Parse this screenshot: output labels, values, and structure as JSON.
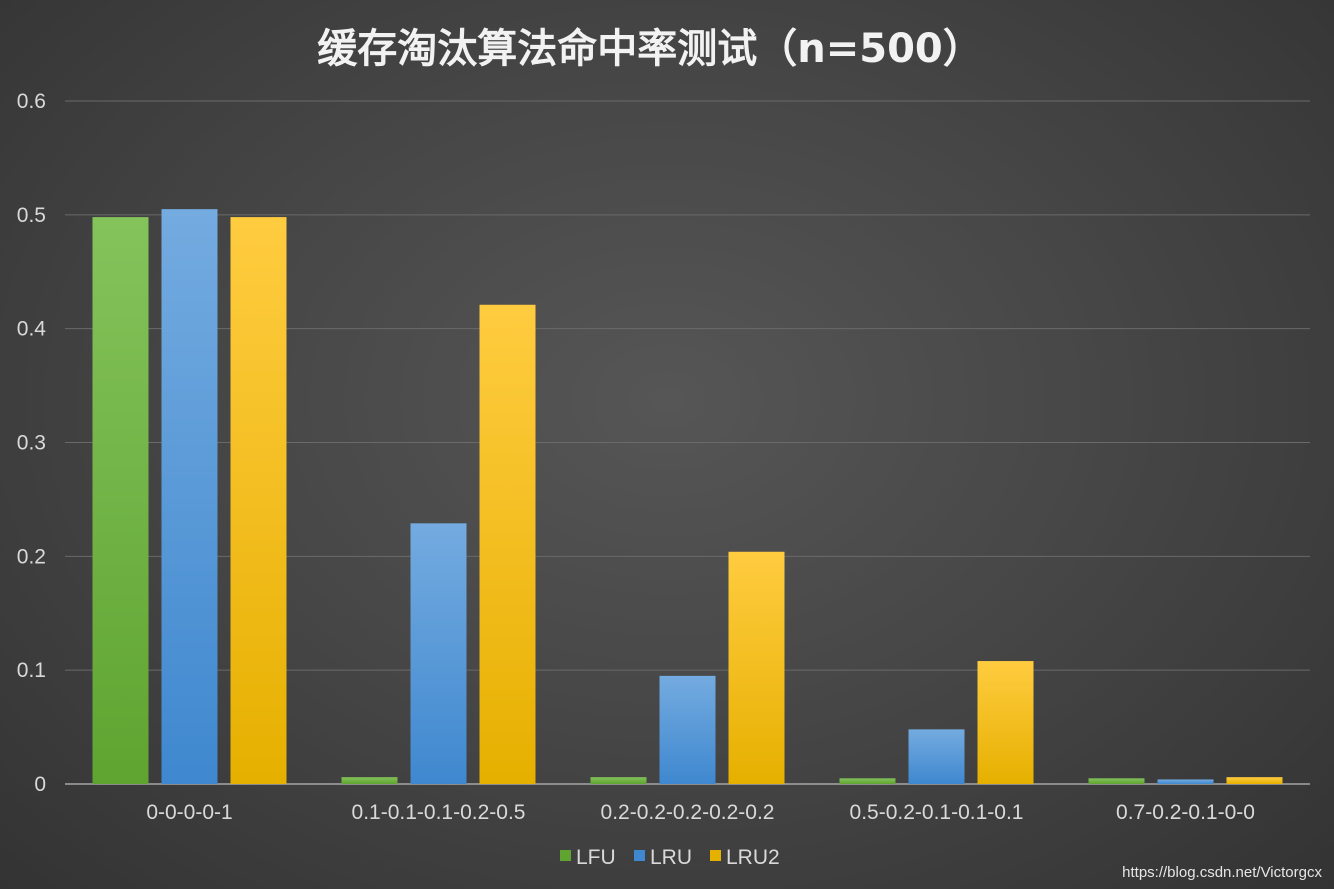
{
  "chart_data": {
    "type": "bar",
    "title": "缓存淘汰算法命中率测试（n=500）",
    "xlabel": "",
    "ylabel": "",
    "categories": [
      "0-0-0-0-1",
      "0.1-0.1-0.1-0.2-0.5",
      "0.2-0.2-0.2-0.2-0.2",
      "0.5-0.2-0.1-0.1-0.1",
      "0.7-0.2-0.1-0-0"
    ],
    "series": [
      {
        "name": "LFU",
        "values": [
          0.498,
          0.006,
          0.006,
          0.005,
          0.005
        ]
      },
      {
        "name": "LRU",
        "values": [
          0.505,
          0.229,
          0.095,
          0.048,
          0.004
        ]
      },
      {
        "name": "LRU2",
        "values": [
          0.498,
          0.421,
          0.204,
          0.108,
          0.006
        ]
      }
    ],
    "ylim": [
      0,
      0.6
    ],
    "yticks": [
      "0",
      "0.1",
      "0.2",
      "0.3",
      "0.4",
      "0.5",
      "0.6"
    ],
    "grid": true,
    "legend_position": "bottom"
  },
  "colors": {
    "LFU": [
      "#84c35b",
      "#5fa431"
    ],
    "LRU": [
      "#74abe0",
      "#3f88cf"
    ],
    "LRU2": [
      "#ffcc40",
      "#e6b000"
    ]
  },
  "watermark": "https://blog.csdn.net/Victorgcx"
}
